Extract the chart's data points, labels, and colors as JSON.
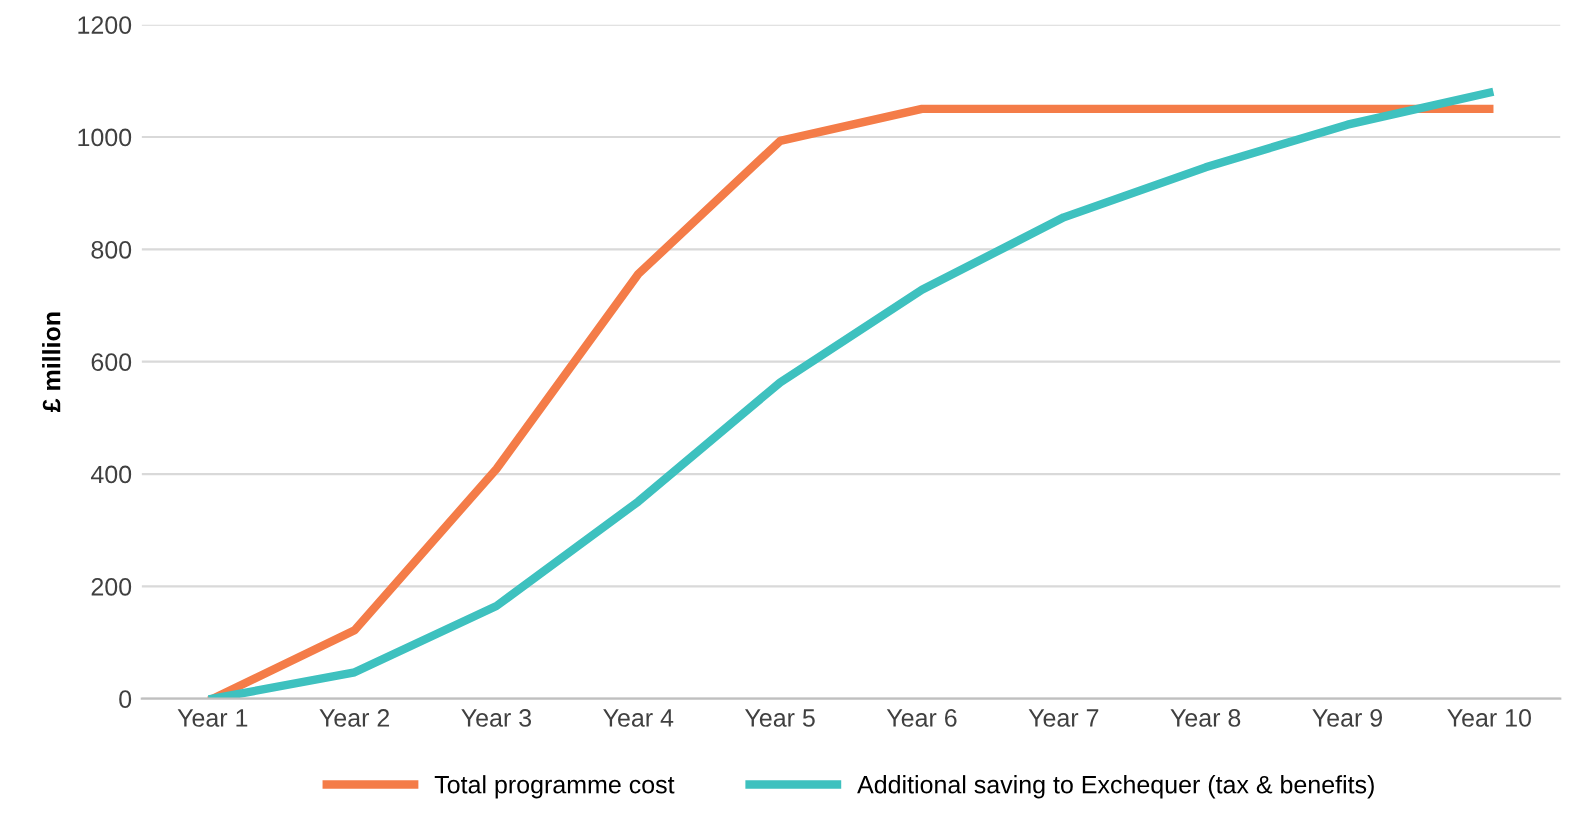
{
  "chart_data": {
    "type": "line",
    "ylabel": "£ million",
    "categories": [
      "Year 1",
      "Year 2",
      "Year 3",
      "Year 4",
      "Year 5",
      "Year 6",
      "Year 7",
      "Year 8",
      "Year 9",
      "Year 10"
    ],
    "series": [
      {
        "name": "Total programme cost",
        "color": "#f47c48",
        "values": [
          0,
          122,
          409,
          756,
          993,
          1050,
          1050,
          1050,
          1050,
          1050
        ]
      },
      {
        "name": "Additional saving to Exchequer (tax & benefits)",
        "color": "#3ec1bf",
        "values": [
          0,
          47,
          165,
          351,
          563,
          728,
          857,
          946,
          1022,
          1079
        ]
      }
    ],
    "ylim": [
      0,
      1200
    ],
    "yticks": [
      0,
      200,
      400,
      600,
      800,
      1000,
      1200
    ],
    "grid": "y",
    "legend": "bottom",
    "marker": "none",
    "line_style": "solid"
  }
}
